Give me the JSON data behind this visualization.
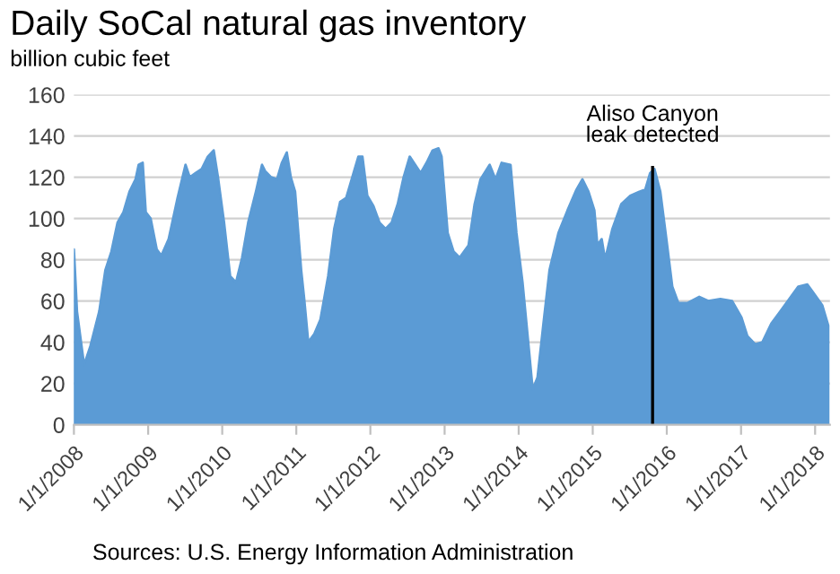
{
  "chart_data": {
    "type": "area",
    "title": "Daily SoCal natural gas inventory",
    "ylabel": "billion cubic feet",
    "x": [
      "2008-01-01",
      "2008-01-16",
      "2008-02-20",
      "2008-03-22",
      "2008-05-05",
      "2008-06-04",
      "2008-07-04",
      "2008-08-03",
      "2008-09-01",
      "2008-10-01",
      "2008-10-31",
      "2008-11-15",
      "2008-12-05",
      "2008-12-20",
      "2009-01-13",
      "2009-02-12",
      "2009-03-07",
      "2009-04-12",
      "2009-05-26",
      "2009-07-04",
      "2009-07-25",
      "2009-08-23",
      "2009-09-22",
      "2009-10-22",
      "2009-11-20",
      "2009-12-11",
      "2010-01-10",
      "2010-02-09",
      "2010-03-10",
      "2010-04-09",
      "2010-05-09",
      "2010-06-16",
      "2010-07-16",
      "2010-07-31",
      "2010-08-30",
      "2010-09-28",
      "2010-10-22",
      "2010-11-15",
      "2010-12-05",
      "2010-12-26",
      "2011-01-25",
      "2011-02-09",
      "2011-03-01",
      "2011-03-31",
      "2011-04-30",
      "2011-06-07",
      "2011-07-07",
      "2011-08-05",
      "2011-09-04",
      "2011-10-04",
      "2011-11-03",
      "2011-11-23",
      "2011-12-17",
      "2012-01-16",
      "2012-02-15",
      "2012-03-16",
      "2012-04-15",
      "2012-05-15",
      "2012-06-13",
      "2012-07-13",
      "2012-09-05",
      "2012-10-04",
      "2012-11-03",
      "2012-12-02",
      "2012-12-17",
      "2013-01-16",
      "2013-02-14",
      "2013-03-16",
      "2013-04-29",
      "2013-05-29",
      "2013-06-27",
      "2013-08-11",
      "2013-09-09",
      "2013-10-09",
      "2013-11-22",
      "2013-12-21",
      "2014-01-20",
      "2014-02-19",
      "2014-03-11",
      "2014-04-04",
      "2014-05-03",
      "2014-06-02",
      "2014-07-16",
      "2014-08-30",
      "2014-10-13",
      "2014-11-11",
      "2014-12-11",
      "2015-01-09",
      "2015-01-24",
      "2015-02-14",
      "2015-03-03",
      "2015-04-08",
      "2015-05-22",
      "2015-07-05",
      "2015-08-19",
      "2015-09-17",
      "2015-10-11",
      "2015-11-01",
      "2015-11-30",
      "2015-12-30",
      "2016-01-28",
      "2016-02-27",
      "2016-04-11",
      "2016-06-09",
      "2016-07-23",
      "2016-09-21",
      "2016-11-18",
      "2017-01-03",
      "2017-02-01",
      "2017-03-12",
      "2017-04-16",
      "2017-05-30",
      "2017-07-14",
      "2017-08-27",
      "2017-10-10",
      "2017-11-24",
      "2017-12-23",
      "2018-02-05",
      "2018-03-07"
    ],
    "series": [
      {
        "color": "#5b9bd5",
        "values": [
          85,
          55,
          29,
          38,
          55,
          75,
          84,
          98,
          103,
          113,
          119,
          126,
          127,
          103,
          100,
          85,
          82,
          90,
          110,
          126,
          120,
          122,
          124,
          130,
          133,
          120,
          98,
          72,
          69,
          81,
          98,
          113,
          126,
          123,
          120,
          119,
          127,
          132,
          120,
          113,
          75,
          61,
          40,
          44,
          51,
          72,
          95,
          108,
          110,
          120,
          130,
          130,
          111,
          106,
          98,
          95,
          98,
          107,
          120,
          130,
          122,
          127,
          133,
          134,
          130,
          93,
          84,
          81,
          87,
          107,
          119,
          126,
          119,
          127,
          126,
          93,
          69,
          38,
          17,
          23,
          49,
          75,
          93,
          104,
          114,
          119,
          113,
          104,
          87,
          90,
          80,
          95,
          107,
          111,
          113,
          114,
          122,
          124,
          113,
          90,
          67,
          59,
          59,
          62,
          60,
          61,
          60,
          52,
          43,
          39,
          40,
          49,
          55,
          61,
          67,
          68,
          64,
          58,
          48
        ]
      }
    ],
    "xlim": [
      "2008-01-01",
      "2018-03-15"
    ],
    "xticks": [
      {
        "value": "2008-01-01",
        "label": "1/1/2008"
      },
      {
        "value": "2009-01-01",
        "label": "1/1/2009"
      },
      {
        "value": "2010-01-01",
        "label": "1/1/2010"
      },
      {
        "value": "2011-01-01",
        "label": "1/1/2011"
      },
      {
        "value": "2012-01-01",
        "label": "1/1/2012"
      },
      {
        "value": "2013-01-01",
        "label": "1/1/2013"
      },
      {
        "value": "2014-01-01",
        "label": "1/1/2014"
      },
      {
        "value": "2015-01-01",
        "label": "1/1/2015"
      },
      {
        "value": "2016-01-01",
        "label": "1/1/2016"
      },
      {
        "value": "2017-01-01",
        "label": "1/1/2017"
      },
      {
        "value": "2018-01-01",
        "label": "1/1/2018"
      }
    ],
    "ylim": [
      0,
      160
    ],
    "yticks": [
      0,
      20,
      40,
      60,
      80,
      100,
      120,
      140,
      160
    ],
    "grid": "y",
    "ref_lines": [
      {
        "axis": "x",
        "value": "2015-10-23",
        "label": "Aliso Canyon\nleak detected",
        "color": "#000000"
      }
    ],
    "annotations": [
      "Sources: U.S. Energy Information Administration"
    ]
  }
}
